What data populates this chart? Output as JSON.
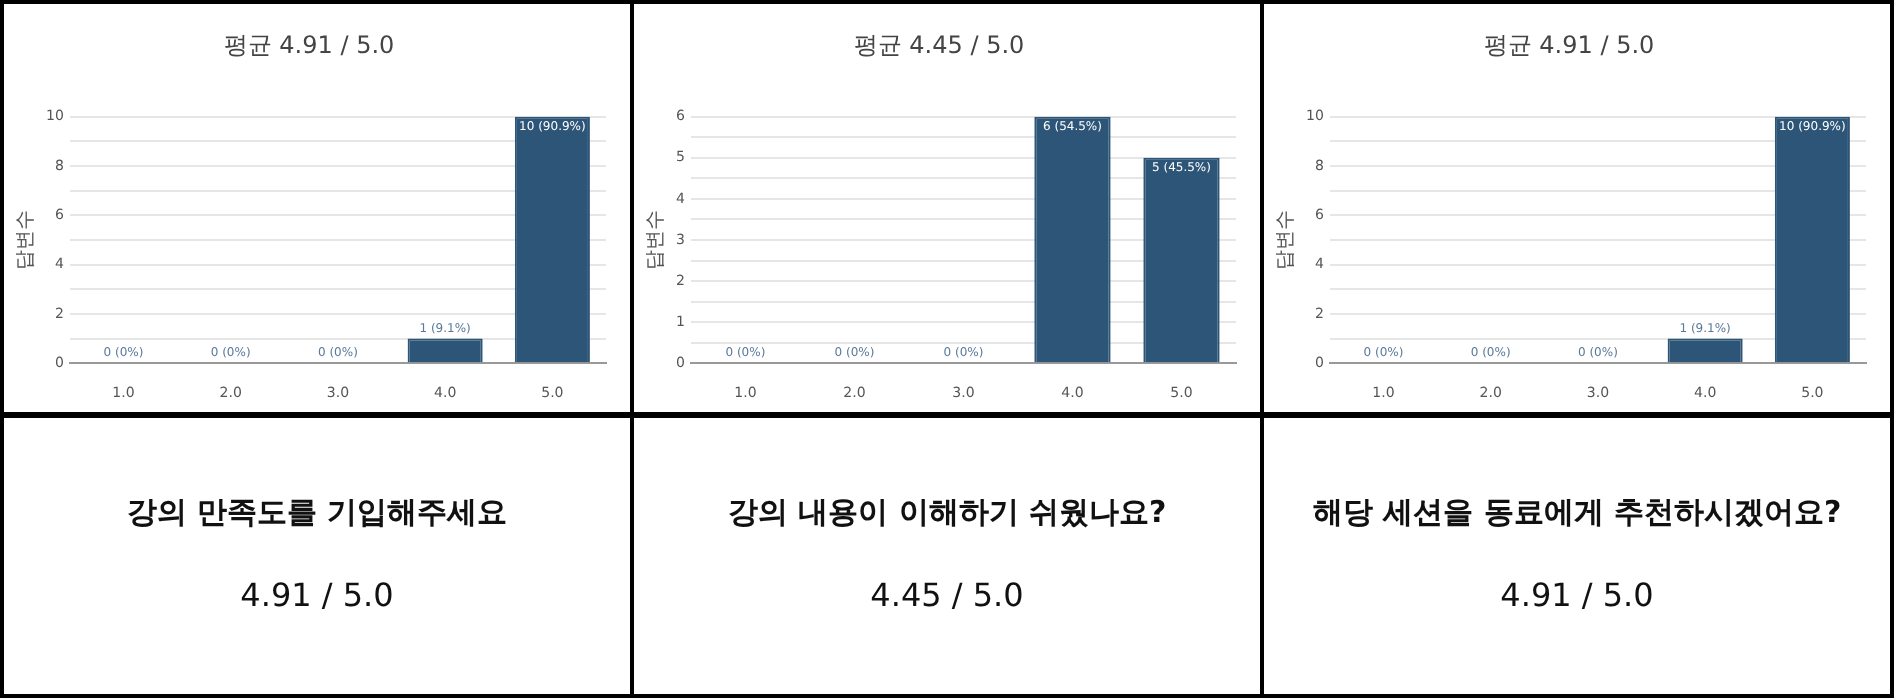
{
  "chart_data": [
    {
      "type": "bar",
      "title": "평균 4.91 / 5.0",
      "ylabel": "답변수",
      "categories": [
        "1.0",
        "2.0",
        "3.0",
        "4.0",
        "5.0"
      ],
      "values": [
        0,
        0,
        0,
        1,
        10
      ],
      "color": "#2d5577",
      "value_labels": [
        "0 (0%)",
        "0 (0%)",
        "0 (0%)",
        "1 (9.1%)",
        "10 (90.9%)"
      ],
      "ylim": [
        0,
        10
      ],
      "yticks": [
        0,
        {
          "value": 1,
          "label": null
        },
        2,
        {
          "value": 3,
          "label": null
        },
        4,
        {
          "value": 5,
          "label": null
        },
        6,
        {
          "value": 7,
          "label": null
        },
        8,
        {
          "value": 9,
          "label": null
        },
        10
      ],
      "grid": "y",
      "annotations": [
        "강의 만족도를 기입해주세요",
        "4.91 / 5.0"
      ]
    },
    {
      "type": "bar",
      "title": "평균 4.45 / 5.0",
      "ylabel": "답변수",
      "categories": [
        "1.0",
        "2.0",
        "3.0",
        "4.0",
        "5.0"
      ],
      "values": [
        0,
        0,
        0,
        6,
        5
      ],
      "color": "#2d5577",
      "value_labels": [
        "0 (0%)",
        "0 (0%)",
        "0 (0%)",
        "6 (54.5%)",
        "5 (45.5%)"
      ],
      "ylim": [
        0,
        6
      ],
      "yticks": [
        0,
        {
          "value": 0.5,
          "label": null
        },
        1,
        {
          "value": 1.5,
          "label": null
        },
        2,
        {
          "value": 2.5,
          "label": null
        },
        3,
        {
          "value": 3.5,
          "label": null
        },
        4,
        {
          "value": 4.5,
          "label": null
        },
        5,
        {
          "value": 5.5,
          "label": null
        },
        6
      ],
      "grid": "y",
      "annotations": [
        "강의 내용이 이해하기 쉬웠나요?",
        "4.45 / 5.0"
      ]
    },
    {
      "type": "bar",
      "title": "평균 4.91 / 5.0",
      "ylabel": "답변수",
      "categories": [
        "1.0",
        "2.0",
        "3.0",
        "4.0",
        "5.0"
      ],
      "values": [
        0,
        0,
        0,
        1,
        10
      ],
      "color": "#2d5577",
      "value_labels": [
        "0 (0%)",
        "0 (0%)",
        "0 (0%)",
        "1 (9.1%)",
        "10 (90.9%)"
      ],
      "ylim": [
        0,
        10
      ],
      "yticks": [
        0,
        {
          "value": 1,
          "label": null
        },
        2,
        {
          "value": 3,
          "label": null
        },
        4,
        {
          "value": 5,
          "label": null
        },
        6,
        {
          "value": 7,
          "label": null
        },
        8,
        {
          "value": 9,
          "label": null
        },
        10
      ],
      "grid": "y",
      "annotations": [
        "해당 세션을 동료에게 추천하시겠어요?",
        "4.91 / 5.0"
      ]
    }
  ]
}
